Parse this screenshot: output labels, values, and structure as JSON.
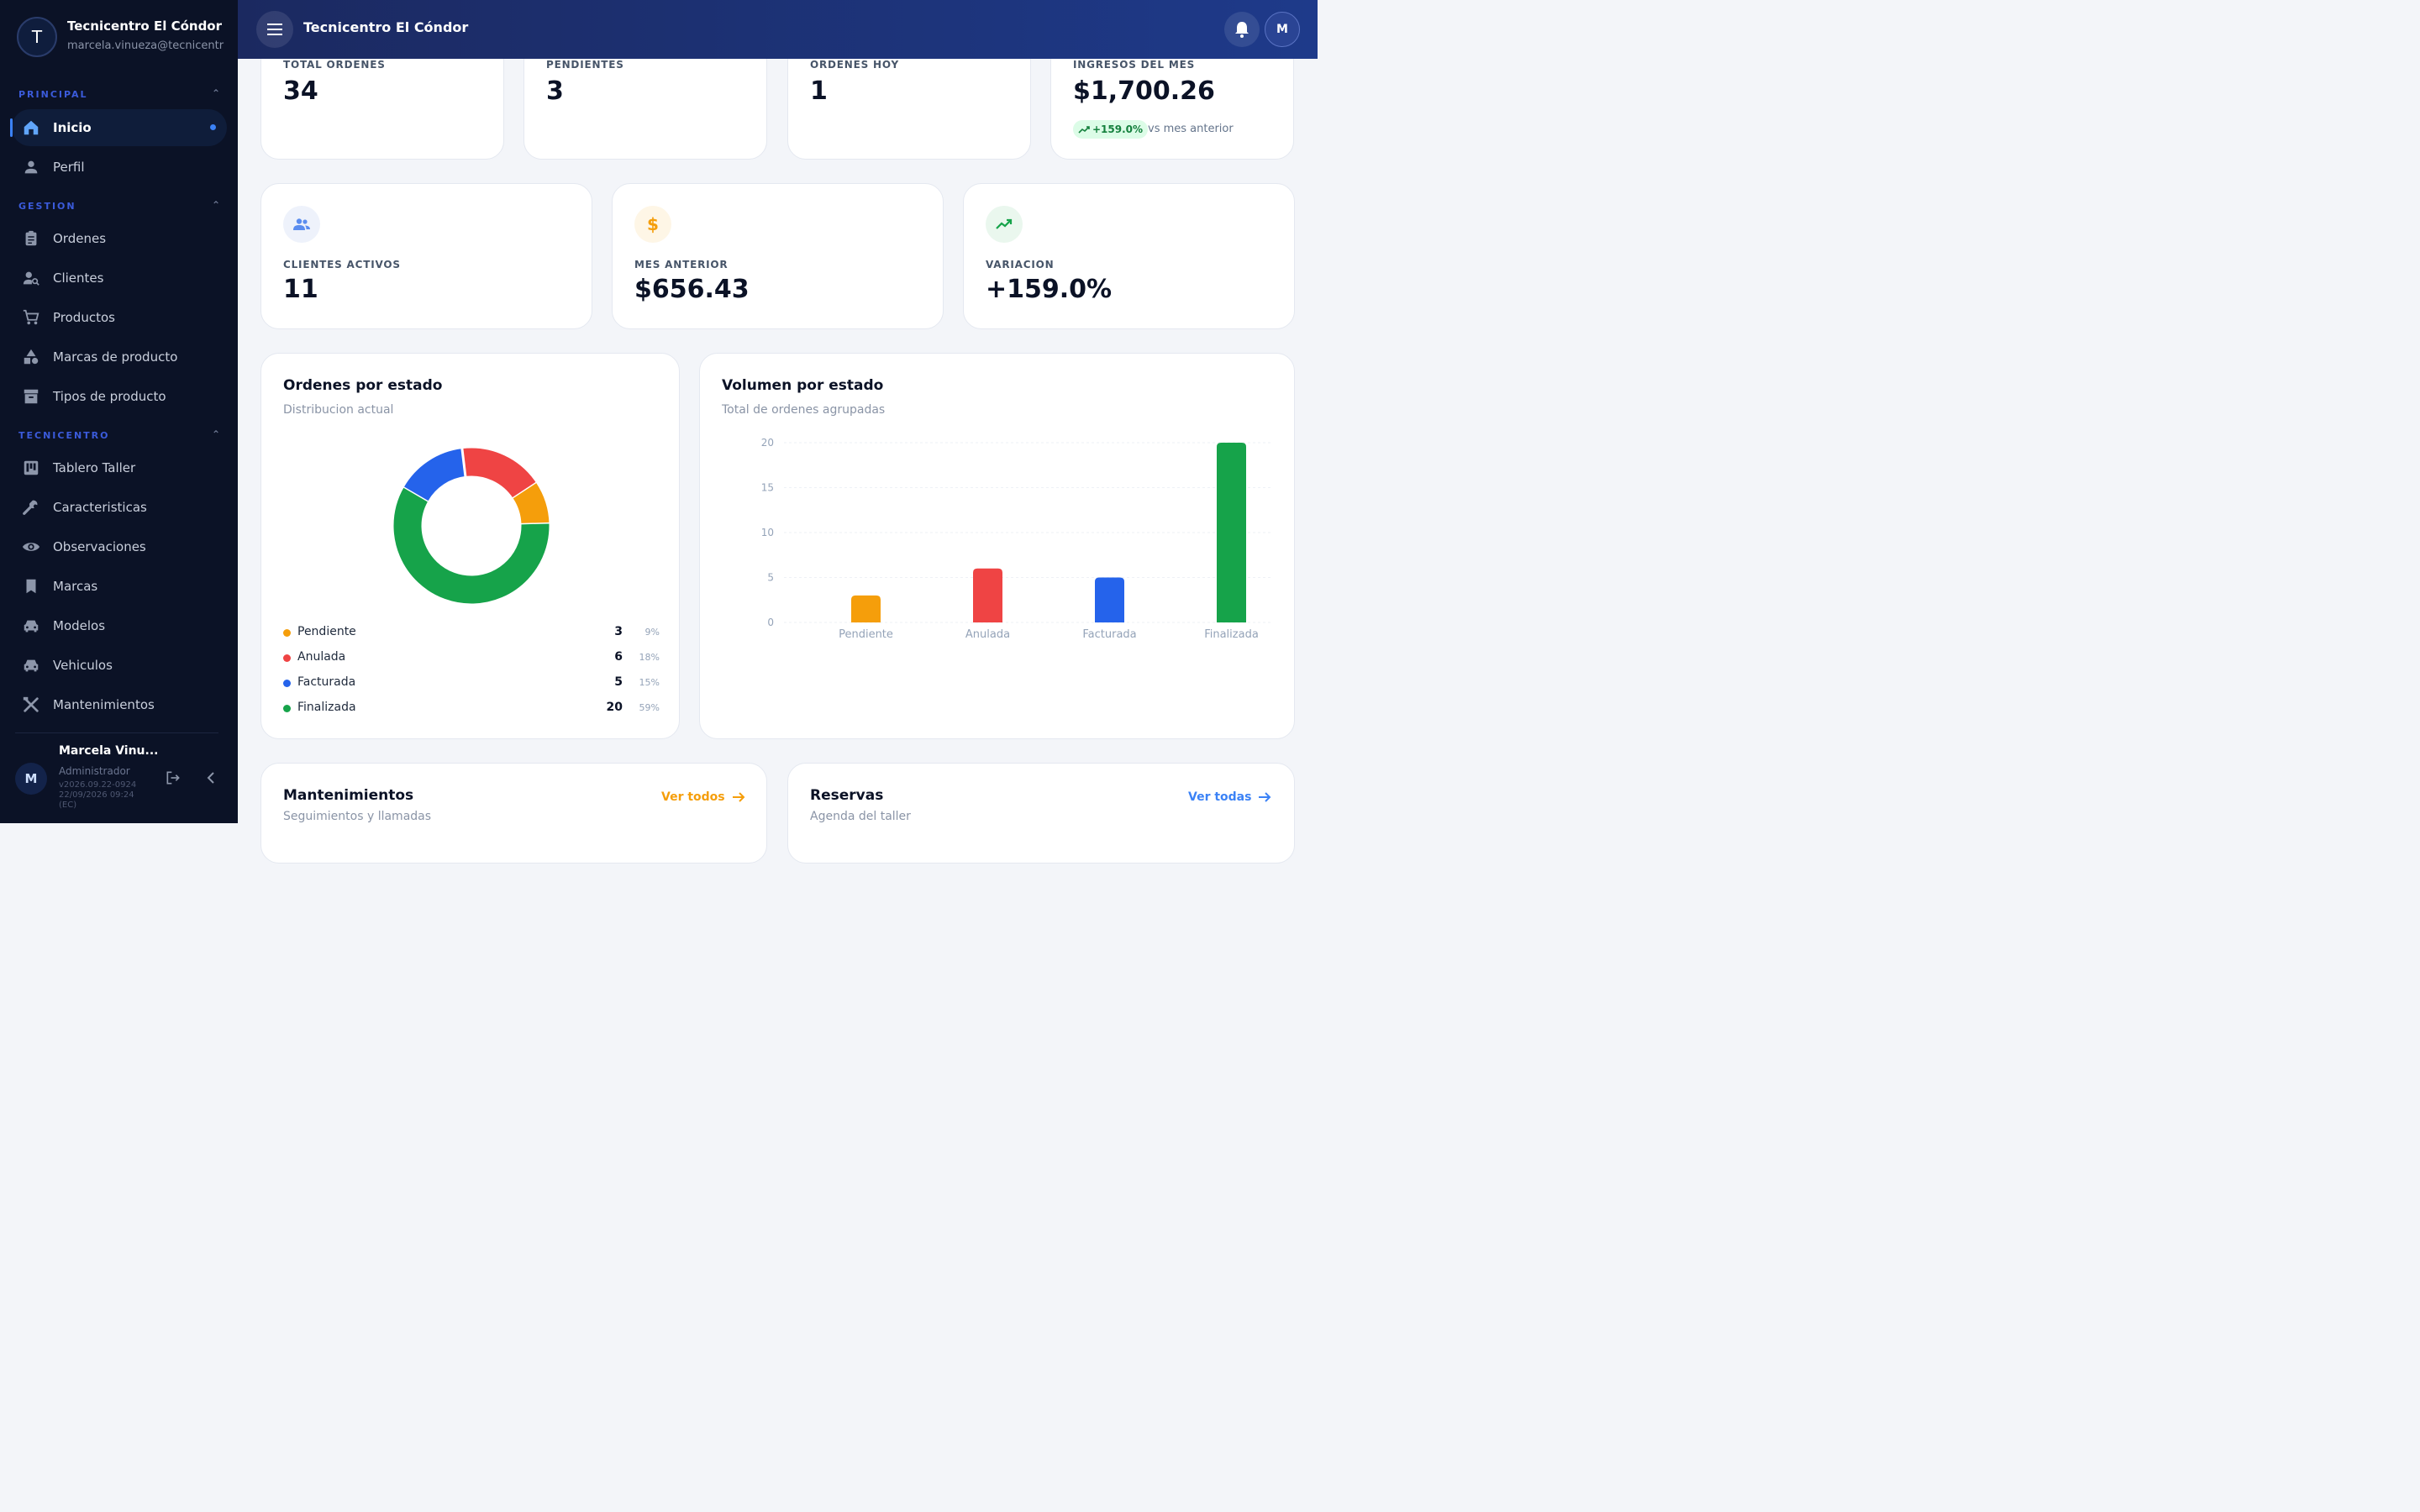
{
  "app": {
    "name": "Tecnicentro El Cóndor",
    "email": "marcela.vinueza@tecnicentr",
    "initial": "T"
  },
  "sidebar": {
    "sections": [
      {
        "title": "PRINCIPAL",
        "items": [
          {
            "label": "Inicio",
            "icon": "home-icon",
            "active": true
          },
          {
            "label": "Perfil",
            "icon": "person-icon"
          }
        ]
      },
      {
        "title": "GESTION",
        "items": [
          {
            "label": "Ordenes",
            "icon": "clipboard-icon"
          },
          {
            "label": "Clientes",
            "icon": "person-search-icon"
          },
          {
            "label": "Productos",
            "icon": "cart-icon"
          },
          {
            "label": "Marcas de producto",
            "icon": "shapes-icon"
          },
          {
            "label": "Tipos de producto",
            "icon": "archive-icon"
          }
        ]
      },
      {
        "title": "TECNICENTRO",
        "items": [
          {
            "label": "Tablero Taller",
            "icon": "board-icon"
          },
          {
            "label": "Caracteristicas",
            "icon": "wrench-icon"
          },
          {
            "label": "Observaciones",
            "icon": "eye-icon"
          },
          {
            "label": "Marcas",
            "icon": "bookmark-icon"
          },
          {
            "label": "Modelos",
            "icon": "car-icon"
          },
          {
            "label": "Vehiculos",
            "icon": "car-icon"
          },
          {
            "label": "Mantenimientos",
            "icon": "tools-icon"
          }
        ]
      }
    ]
  },
  "user": {
    "initial": "M",
    "name": "Marcela Vinu...",
    "role": "Administrador",
    "version": "v2026.09.22-0924 22/09/2026 09:24 (EC)"
  },
  "topbar": {
    "title": "Tecnicentro El Cóndor",
    "avatar_initial": "M"
  },
  "stats": [
    {
      "label": "TOTAL ORDENES",
      "value": "34"
    },
    {
      "label": "PENDIENTES",
      "value": "3"
    },
    {
      "label": "ORDENES HOY",
      "value": "1"
    },
    {
      "label": "INGRESOS DEL MES",
      "value": "$1,700.26",
      "trend": "+159.0%",
      "trend_note": "vs mes anterior"
    }
  ],
  "stats2": [
    {
      "label": "CLIENTES ACTIVOS",
      "value": "11",
      "icon": "people-icon"
    },
    {
      "label": "MES ANTERIOR",
      "value": "$656.43",
      "icon": "dollar-icon"
    },
    {
      "label": "VARIACION",
      "value": "+159.0%",
      "icon": "trending-up-icon"
    }
  ],
  "colors": {
    "Pendiente": "#f59e0b",
    "Anulada": "#ef4444",
    "Facturada": "#2563eb",
    "Finalizada": "#16a34a"
  },
  "donut": {
    "title": "Ordenes por estado",
    "subtitle": "Distribucion actual",
    "legend": [
      {
        "name": "Pendiente",
        "value": "3",
        "pct": "9%"
      },
      {
        "name": "Anulada",
        "value": "6",
        "pct": "18%"
      },
      {
        "name": "Facturada",
        "value": "5",
        "pct": "15%"
      },
      {
        "name": "Finalizada",
        "value": "20",
        "pct": "59%"
      }
    ]
  },
  "bars": {
    "title": "Volumen por estado",
    "subtitle": "Total de ordenes agrupadas"
  },
  "chart_data": [
    {
      "type": "pie",
      "title": "Ordenes por estado",
      "subtitle": "Distribucion actual",
      "categories": [
        "Pendiente",
        "Anulada",
        "Facturada",
        "Finalizada"
      ],
      "values": [
        3,
        6,
        5,
        20
      ],
      "legend": "bottom"
    },
    {
      "type": "bar",
      "title": "Volumen por estado",
      "subtitle": "Total de ordenes agrupadas",
      "categories": [
        "Pendiente",
        "Anulada",
        "Facturada",
        "Finalizada"
      ],
      "values": [
        3,
        6,
        5,
        20
      ],
      "ylim": [
        0,
        20
      ],
      "yticks": [
        "0",
        "5",
        "10",
        "15",
        "20"
      ],
      "grid": true
    }
  ],
  "bottom_cards": [
    {
      "title": "Mantenimientos",
      "subtitle": "Seguimientos y llamadas",
      "link": "Ver todos",
      "link_color": "#f59e0b"
    },
    {
      "title": "Reservas",
      "subtitle": "Agenda del taller",
      "link": "Ver todas",
      "link_color": "#3b82f6"
    }
  ]
}
